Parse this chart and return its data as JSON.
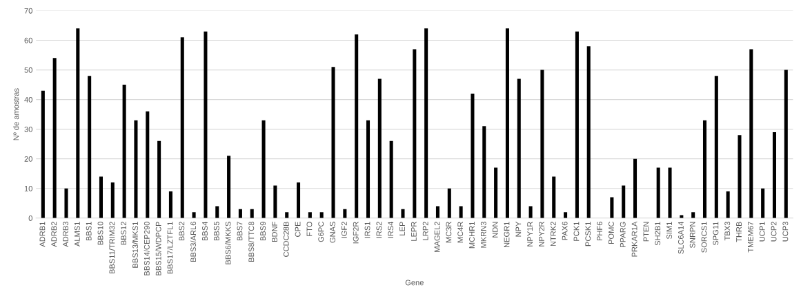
{
  "chart_data": {
    "type": "bar",
    "xlabel": "Gene",
    "ylabel": "Nº de amostras",
    "categories": [
      "ADRB1",
      "ADRB2",
      "ADRB3",
      "ALMS1",
      "BBS1",
      "BBS10",
      "BBS11/TRIM32",
      "BBS12",
      "BBS13/MKS1",
      "BBS14/CEP290",
      "BBS15/WDPCP",
      "BBS17/LZTFL1",
      "BBS2",
      "BBS3/ARL6",
      "BBS4",
      "BBS5",
      "BBS6/MKKS",
      "BBS7",
      "BBS8/TTC8",
      "BBS9",
      "BDNF",
      "CCDC28B",
      "CPE",
      "FTO",
      "G6PC",
      "GNAS",
      "IGF2",
      "IGF2R",
      "IRS1",
      "IRS2",
      "IRS4",
      "LEP",
      "LEPR",
      "LRP2",
      "MAGEL2",
      "MC3R",
      "MC4R",
      "MCHR1",
      "MKRN3",
      "NDN",
      "NEGR1",
      "NPY",
      "NPY1R",
      "NPY2R",
      "NTRK2",
      "PAX6",
      "PCK1",
      "PCSK1",
      "PHF6",
      "POMC",
      "PPARG",
      "PRKAR1A",
      "PTEN",
      "SH2B1",
      "SIM1",
      "SLC6A14",
      "SNRPN",
      "SORCS1",
      "SPG11",
      "TBX3",
      "THRB",
      "TMEM67",
      "UCP1",
      "UCP2",
      "UCP3"
    ],
    "values": [
      43,
      54,
      10,
      64,
      48,
      14,
      12,
      45,
      33,
      36,
      26,
      9,
      61,
      2,
      63,
      4,
      21,
      3,
      3,
      33,
      11,
      2,
      12,
      2,
      2,
      51,
      3,
      62,
      33,
      47,
      26,
      3,
      57,
      64,
      4,
      10,
      4,
      42,
      31,
      17,
      64,
      47,
      4,
      50,
      14,
      2,
      63,
      58,
      0,
      7,
      11,
      20,
      0,
      17,
      17,
      1,
      2,
      33,
      48,
      9,
      28,
      57,
      10,
      29,
      50
    ],
    "color": "#000000",
    "ylim": [
      0,
      70
    ],
    "yticks": [
      0,
      10,
      20,
      30,
      40,
      50,
      60,
      70
    ],
    "grid": "y",
    "legend": false
  }
}
